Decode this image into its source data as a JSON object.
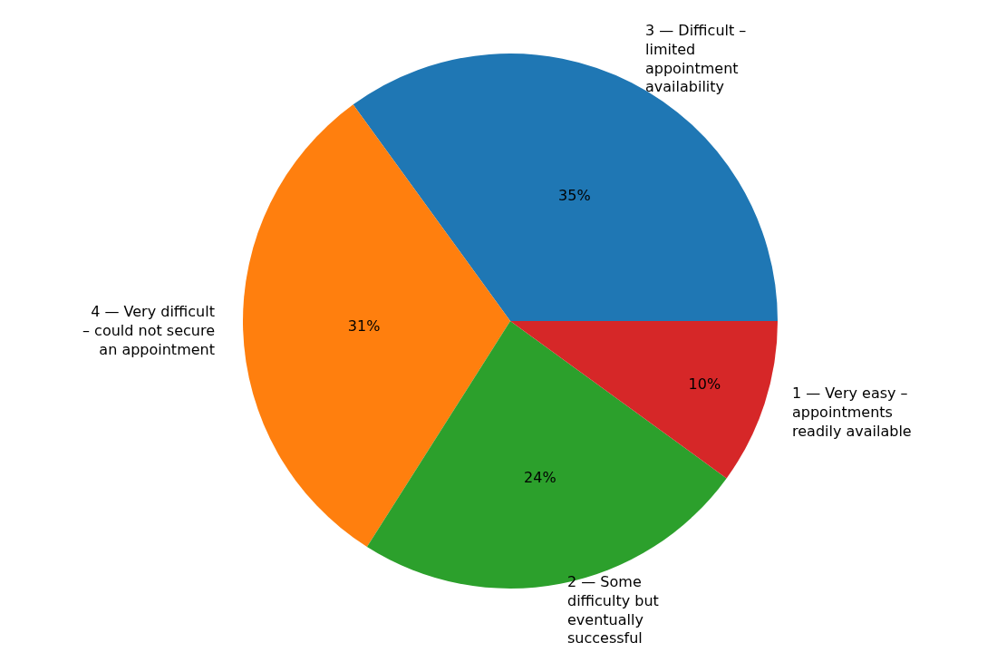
{
  "chart_data": {
    "type": "pie",
    "categories": [
      "3 — Difficult – limited appointment availability",
      "4 — Very difficult – could not secure an appointment",
      "2 — Some difficulty but eventually successful",
      "1 — Very easy – appointments readily available"
    ],
    "values": [
      35,
      31,
      24,
      10
    ],
    "value_labels": [
      "35%",
      "31%",
      "24%",
      "10%"
    ],
    "colors": [
      "#1f77b4",
      "#ff7f0e",
      "#2ca02c",
      "#d62728"
    ],
    "legend": false
  }
}
